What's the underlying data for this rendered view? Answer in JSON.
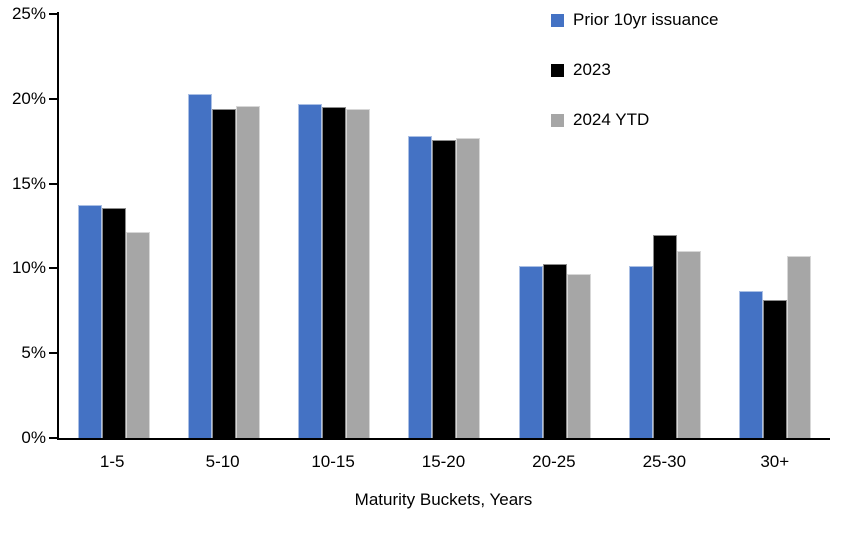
{
  "chart_data": {
    "type": "bar",
    "title": "",
    "categories": [
      "1-5",
      "5-10",
      "10-15",
      "15-20",
      "20-25",
      "25-30",
      "30+"
    ],
    "series": [
      {
        "name": "Prior 10yr issuance",
        "color": "#4472C4",
        "values": [
          13.7,
          20.2,
          19.6,
          17.7,
          10.1,
          10.1,
          8.6
        ]
      },
      {
        "name": "2023",
        "color": "#000000",
        "values": [
          13.5,
          19.3,
          19.4,
          17.5,
          10.2,
          11.9,
          8.1
        ]
      },
      {
        "name": "2024 YTD",
        "color": "#A6A6A6",
        "values": [
          12.1,
          19.5,
          19.3,
          17.6,
          9.6,
          11.0,
          10.7
        ]
      }
    ],
    "xlabel": "Maturity Buckets, Years",
    "ylabel": "",
    "ylim": [
      0,
      25
    ],
    "yticks": [
      0,
      5,
      10,
      15,
      20,
      25
    ],
    "ytick_labels": [
      "0%",
      "5%",
      "10%",
      "15%",
      "20%",
      "25%"
    ],
    "grid": false,
    "legend_position": "top-right",
    "axis_color": "#000000",
    "background_color": "#ffffff"
  }
}
